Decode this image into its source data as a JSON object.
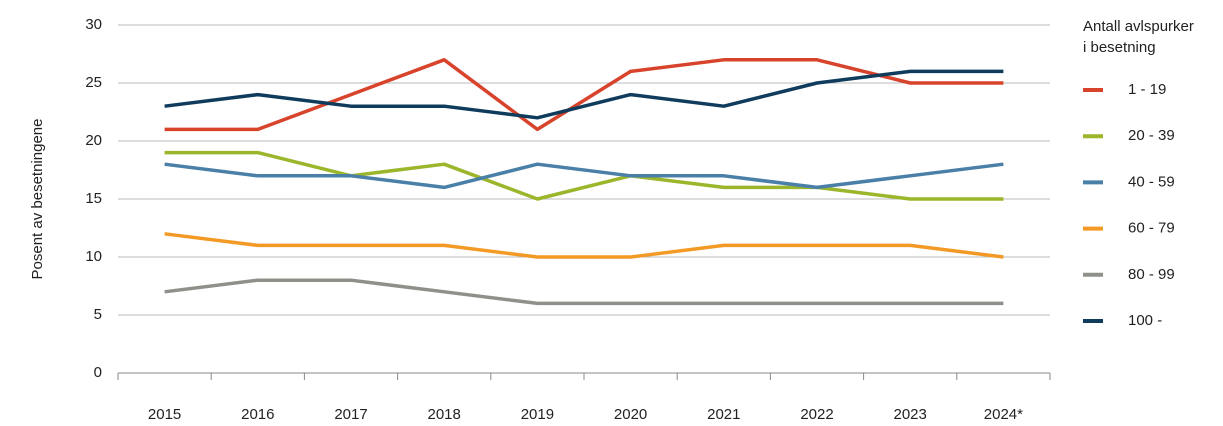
{
  "chart_data": {
    "type": "line",
    "y_label": "Posent av besetningene",
    "legend_title": [
      "Antall avlspurker",
      "i besetning"
    ],
    "categories": [
      "2015",
      "2016",
      "2017",
      "2018",
      "2019",
      "2020",
      "2021",
      "2022",
      "2023",
      "2024*"
    ],
    "series": [
      {
        "name": "1 - 19",
        "color": "#d8432c",
        "values": [
          21,
          21,
          24,
          27,
          21,
          26,
          27,
          27,
          25,
          25
        ]
      },
      {
        "name": "20 - 39",
        "color": "#9cb62c",
        "values": [
          19,
          19,
          17,
          18,
          15,
          17,
          16,
          16,
          15,
          15
        ]
      },
      {
        "name": "40 - 59",
        "color": "#4a7fa8",
        "values": [
          18,
          17,
          17,
          16,
          18,
          17,
          17,
          16,
          17,
          18
        ]
      },
      {
        "name": "60 - 79",
        "color": "#f39a26",
        "values": [
          12,
          11,
          11,
          11,
          10,
          10,
          11,
          11,
          11,
          10
        ]
      },
      {
        "name": "80 - 99",
        "color": "#8d918a",
        "values": [
          7,
          8,
          8,
          7,
          6,
          6,
          6,
          6,
          6,
          6
        ]
      },
      {
        "name": "100 -",
        "color": "#0f3c5c",
        "values": [
          23,
          24,
          23,
          23,
          22,
          24,
          23,
          25,
          26,
          26
        ]
      }
    ],
    "ylim": [
      0,
      30
    ],
    "yticks": [
      0,
      5,
      10,
      15,
      20,
      25,
      30
    ],
    "grid": true,
    "legend": "right"
  }
}
